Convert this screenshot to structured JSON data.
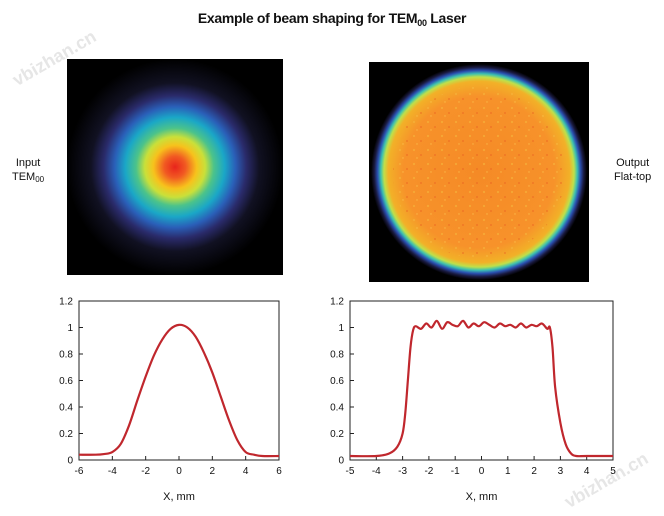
{
  "title": {
    "main": "Example of beam shaping for TEM",
    "sub": "00",
    "tail": " Laser"
  },
  "labels": {
    "input_line1": "Input",
    "input_line2": "TEM",
    "input_sub": "00",
    "output_line1": "Output",
    "output_line2": "Flat-top"
  },
  "watermarks": {
    "left": "vbizhan.cn",
    "right": "vbizhan.cn"
  },
  "colors": {
    "curve": "#c0272d",
    "axis": "#222222",
    "beam_bg": "#000000"
  },
  "chart_data": [
    {
      "type": "line",
      "title": "",
      "xlabel": "X, mm",
      "ylabel": "",
      "xlim": [
        -6,
        6
      ],
      "ylim": [
        0,
        1.2
      ],
      "xticks": [
        "-6",
        "-4",
        "-2",
        "0",
        "2",
        "4",
        "6"
      ],
      "yticks": [
        "0",
        "0.2",
        "0.4",
        "0.6",
        "0.8",
        "1",
        "1.2"
      ],
      "series": [
        {
          "x": [
            -6,
            -5,
            -4.5,
            -4,
            -3.5,
            -3,
            -2.5,
            -2,
            -1.5,
            -1,
            -0.5,
            0,
            0.5,
            1,
            1.5,
            2,
            2.5,
            3,
            3.5,
            4,
            4.5,
            5,
            6
          ],
          "y": [
            0.04,
            0.04,
            0.045,
            0.06,
            0.12,
            0.26,
            0.45,
            0.63,
            0.79,
            0.91,
            0.99,
            1.02,
            1.0,
            0.93,
            0.81,
            0.66,
            0.48,
            0.3,
            0.15,
            0.06,
            0.04,
            0.03,
            0.03
          ]
        }
      ]
    },
    {
      "type": "line",
      "title": "",
      "xlabel": "X, mm",
      "ylabel": "",
      "xlim": [
        -5,
        5
      ],
      "ylim": [
        0,
        1.2
      ],
      "xticks": [
        "-5",
        "-4",
        "-3",
        "-2",
        "-1",
        "0",
        "1",
        "2",
        "3",
        "4",
        "5"
      ],
      "yticks": [
        "0",
        "0.2",
        "0.4",
        "0.6",
        "0.8",
        "1",
        "1.2"
      ],
      "series": [
        {
          "x": [
            -5,
            -4,
            -3.5,
            -3.2,
            -3.0,
            -2.9,
            -2.8,
            -2.7,
            -2.6,
            -2.5,
            -2.3,
            -2.1,
            -1.9,
            -1.7,
            -1.5,
            -1.3,
            -1.1,
            -0.9,
            -0.7,
            -0.5,
            -0.3,
            -0.1,
            0.1,
            0.3,
            0.5,
            0.7,
            0.9,
            1.1,
            1.3,
            1.5,
            1.7,
            1.9,
            2.1,
            2.3,
            2.5,
            2.6,
            2.7,
            2.8,
            3.0,
            3.2,
            3.4,
            3.6,
            4,
            5
          ],
          "y": [
            0.03,
            0.03,
            0.05,
            0.1,
            0.2,
            0.35,
            0.6,
            0.85,
            0.98,
            1.01,
            0.99,
            1.03,
            1.0,
            1.05,
            0.99,
            1.04,
            1.02,
            1.01,
            1.05,
            1.0,
            1.03,
            1.01,
            1.04,
            1.02,
            1.0,
            1.03,
            1.01,
            1.02,
            1.0,
            1.03,
            1.0,
            1.02,
            1.01,
            1.03,
            0.99,
            1.0,
            0.85,
            0.55,
            0.28,
            0.12,
            0.05,
            0.03,
            0.03,
            0.03
          ]
        }
      ]
    }
  ]
}
